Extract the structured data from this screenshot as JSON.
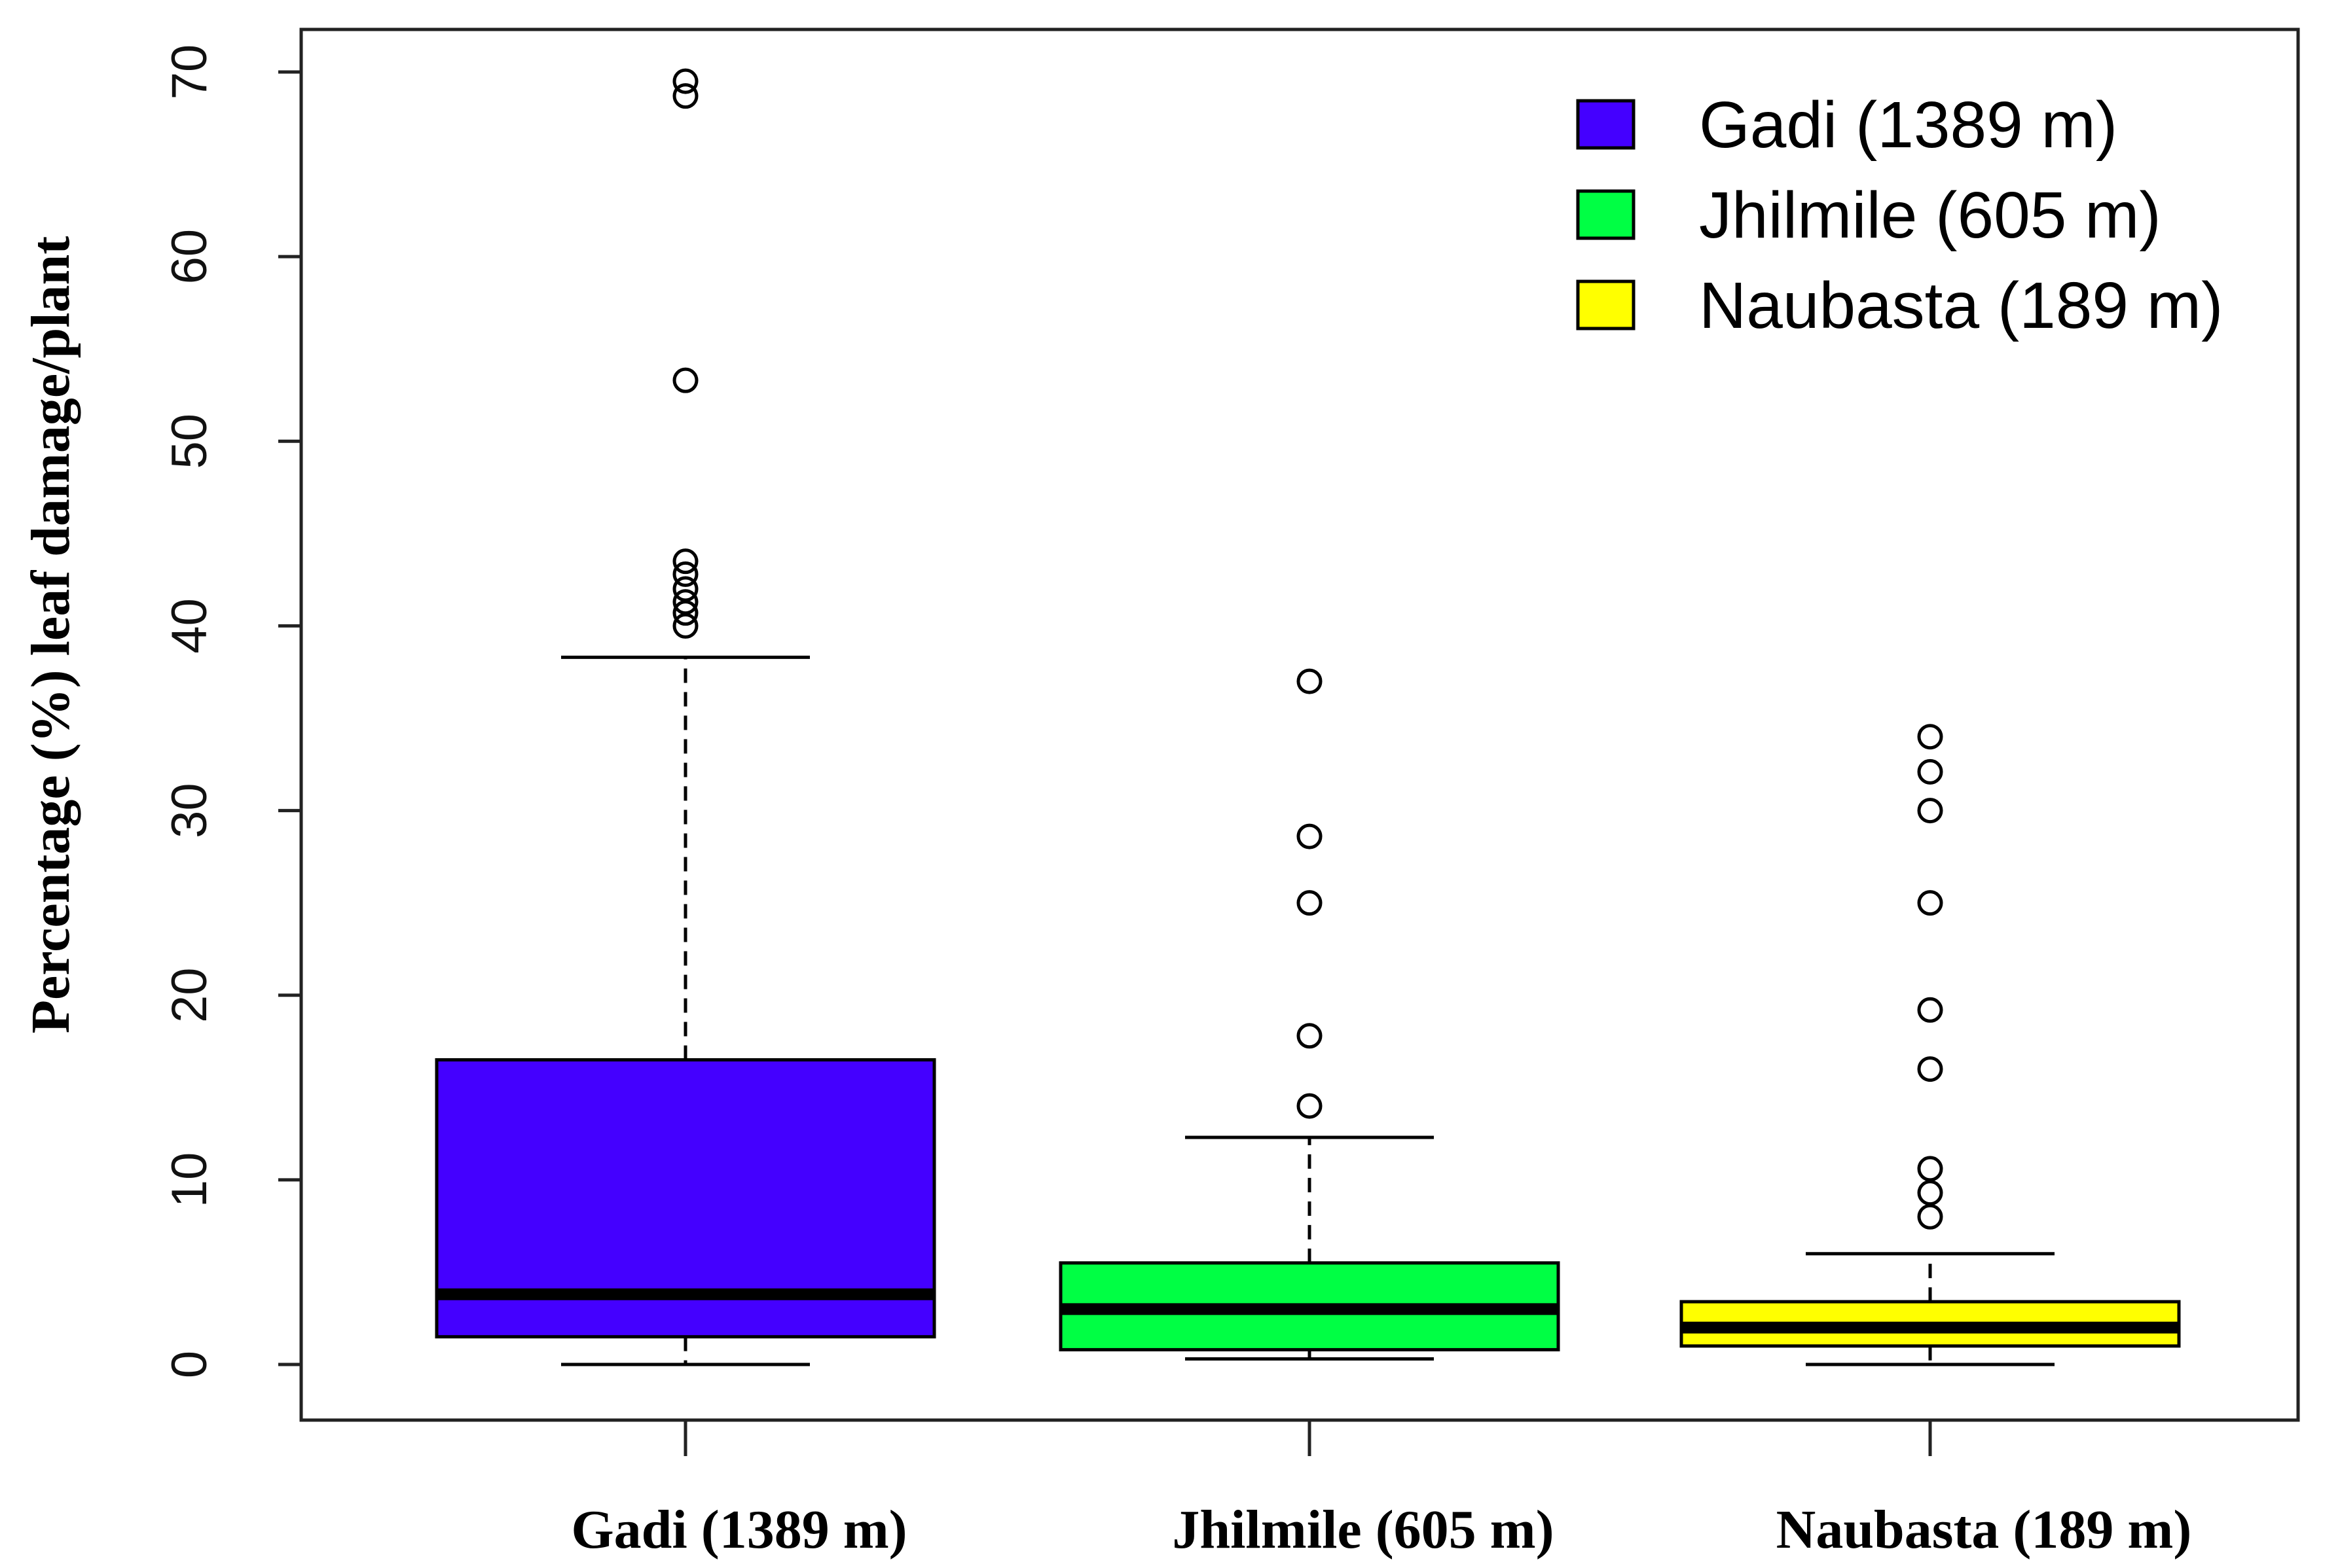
{
  "chart_data": {
    "type": "boxplot",
    "title": "",
    "xlabel": "",
    "ylabel": "Percentage (%) leaf damage/plant",
    "ylim": [
      -3,
      73
    ],
    "yticks": [
      0,
      10,
      20,
      30,
      40,
      50,
      60,
      70
    ],
    "categories": [
      "Gadi (1389 m)",
      "Jhilmile (605 m)",
      "Naubasta (189 m)"
    ],
    "series": [
      {
        "name": "Gadi (1389 m)",
        "color": "#4400ff",
        "min": 0,
        "q1": 1.5,
        "median": 3.8,
        "q3": 16.5,
        "max": 38.3,
        "outliers": [
          40.0,
          40.7,
          41.3,
          42.0,
          42.8,
          43.5,
          53.3,
          68.7,
          69.5
        ]
      },
      {
        "name": "Jhilmile (605 m)",
        "color": "#00ff44",
        "min": 0.3,
        "q1": 0.8,
        "median": 3.0,
        "q3": 5.5,
        "max": 12.3,
        "outliers": [
          14.0,
          17.8,
          25.0,
          28.6,
          37.0
        ]
      },
      {
        "name": "Naubasta (189 m)",
        "color": "#ffff00",
        "min": 0,
        "q1": 1.0,
        "median": 2.0,
        "q3": 3.4,
        "max": 6.0,
        "outliers": [
          8.0,
          9.3,
          10.6,
          16.0,
          19.2,
          25.0,
          30.0,
          32.1,
          34.0
        ]
      }
    ],
    "legend_position": "top-right"
  }
}
